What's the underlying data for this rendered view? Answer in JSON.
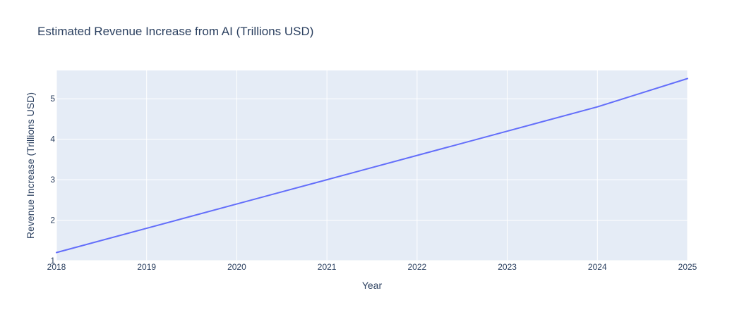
{
  "chart_data": {
    "type": "line",
    "title": "Estimated Revenue Increase from AI (Trillions USD)",
    "xlabel": "Year",
    "ylabel": "Revenue Increase (Trillions USD)",
    "x": [
      2018,
      2019,
      2020,
      2021,
      2022,
      2023,
      2024,
      2025
    ],
    "series": [
      {
        "values": [
          1.2,
          1.8,
          2.4,
          3.0,
          3.6,
          4.2,
          4.8,
          5.5
        ]
      }
    ],
    "xlim": [
      2018,
      2025
    ],
    "ylim": [
      1,
      5.7
    ],
    "x_ticks": [
      "2018",
      "2019",
      "2020",
      "2021",
      "2022",
      "2023",
      "2024",
      "2025"
    ],
    "y_ticks": [
      1,
      2,
      3,
      4,
      5
    ],
    "y_tick_labels": [
      "1",
      "2",
      "3",
      "4",
      "5"
    ],
    "grid": true,
    "colors": {
      "plot_background": "#e5ecf6",
      "grid": "#ffffff",
      "line": "#636efa",
      "text": "#2a3f5f"
    }
  }
}
